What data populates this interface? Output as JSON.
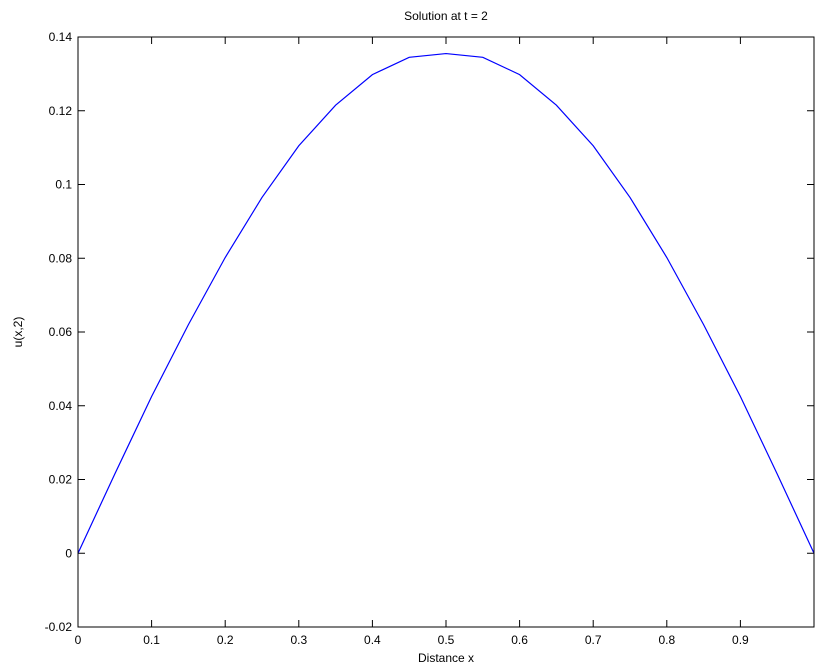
{
  "chart_data": {
    "type": "line",
    "title": "Solution at t = 2",
    "xlabel": "Distance x",
    "ylabel": "u(x,2)",
    "xlim": [
      0,
      1
    ],
    "ylim": [
      -0.02,
      0.14
    ],
    "grid": false,
    "x_ticks": [
      0,
      0.1,
      0.2,
      0.3,
      0.4,
      0.5,
      0.6,
      0.7,
      0.8,
      0.9
    ],
    "x_tick_labels": [
      "0",
      "0.1",
      "0.2",
      "0.3",
      "0.4",
      "0.5",
      "0.6",
      "0.7",
      "0.8",
      "0.9"
    ],
    "y_ticks": [
      -0.02,
      0,
      0.02,
      0.04,
      0.06,
      0.08,
      0.1,
      0.12,
      0.14
    ],
    "y_tick_labels": [
      "-0.02",
      "0",
      "0.02",
      "0.04",
      "0.06",
      "0.08",
      "0.1",
      "0.12",
      "0.14"
    ],
    "series": [
      {
        "color": "#0000ff",
        "x": [
          0,
          0.05,
          0.1,
          0.15,
          0.2,
          0.25,
          0.3,
          0.35,
          0.4,
          0.45,
          0.5,
          0.55,
          0.6,
          0.65,
          0.7,
          0.75,
          0.8,
          0.85,
          0.9,
          0.95,
          1.0
        ],
        "y": [
          0,
          0.0215,
          0.0425,
          0.062,
          0.0802,
          0.0965,
          0.1105,
          0.1215,
          0.1298,
          0.1345,
          0.1355,
          0.1345,
          0.1298,
          0.1215,
          0.1105,
          0.0965,
          0.0802,
          0.062,
          0.0425,
          0.0215,
          0
        ]
      }
    ]
  }
}
